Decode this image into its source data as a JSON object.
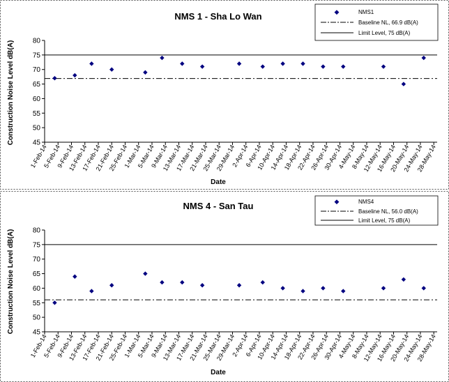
{
  "chart_data": [
    {
      "type": "scatter",
      "title": "NMS 1 - Sha Lo Wan",
      "xlabel": "Date",
      "ylabel": "Construction Noise Level  dB(A)",
      "ylim": [
        45,
        80
      ],
      "yticks": [
        45,
        50,
        55,
        60,
        65,
        70,
        75,
        80
      ],
      "categories": [
        "1-Feb-14",
        "5-Feb-14",
        "9-Feb-14",
        "13-Feb-14",
        "17-Feb-14",
        "21-Feb-14",
        "25-Feb-14",
        "1-Mar-14",
        "5-Mar-14",
        "9-Mar-14",
        "13-Mar-14",
        "17-Mar-14",
        "21-Mar-14",
        "25-Mar-14",
        "29-Mar-14",
        "2-Apr-14",
        "6-Apr-14",
        "10-Apr-14",
        "14-Apr-14",
        "18-Apr-14",
        "22-Apr-14",
        "26-Apr-14",
        "30-Apr-14",
        "4-May-14",
        "8-May-14",
        "12-May-14",
        "16-May-14",
        "20-May-14",
        "24-May-14",
        "28-May-14"
      ],
      "series": [
        {
          "name": "NMS1",
          "color": "#000080",
          "points": [
            {
              "x": "4-Feb-14",
              "y": 67
            },
            {
              "x": "10-Feb-14",
              "y": 68
            },
            {
              "x": "15-Feb-14",
              "y": 72
            },
            {
              "x": "21-Feb-14",
              "y": 70
            },
            {
              "x": "3-Mar-14",
              "y": 69
            },
            {
              "x": "8-Mar-14",
              "y": 74
            },
            {
              "x": "14-Mar-14",
              "y": 72
            },
            {
              "x": "20-Mar-14",
              "y": 71
            },
            {
              "x": "31-Mar-14",
              "y": 72
            },
            {
              "x": "7-Apr-14",
              "y": 71
            },
            {
              "x": "13-Apr-14",
              "y": 72
            },
            {
              "x": "19-Apr-14",
              "y": 72
            },
            {
              "x": "25-Apr-14",
              "y": 71
            },
            {
              "x": "1-May-14",
              "y": 71
            },
            {
              "x": "13-May-14",
              "y": 71
            },
            {
              "x": "19-May-14",
              "y": 65
            },
            {
              "x": "25-May-14",
              "y": 74
            }
          ]
        }
      ],
      "reference_lines": [
        {
          "name": "Baseline NL, 66.9 dB(A)",
          "value": 66.9,
          "style": "dash-dot"
        },
        {
          "name": "Limit Level, 75 dB(A)",
          "value": 75,
          "style": "solid"
        }
      ],
      "legend": "top-right",
      "grid": false
    },
    {
      "type": "scatter",
      "title": "NMS 4 - San Tau",
      "xlabel": "Date",
      "ylabel": "Construction Noise Level  dB(A)",
      "ylim": [
        45,
        80
      ],
      "yticks": [
        45,
        50,
        55,
        60,
        65,
        70,
        75,
        80
      ],
      "categories": [
        "1-Feb-14",
        "5-Feb-14",
        "9-Feb-14",
        "13-Feb-14",
        "17-Feb-14",
        "21-Feb-14",
        "25-Feb-14",
        "1-Mar-14",
        "5-Mar-14",
        "9-Mar-14",
        "13-Mar-14",
        "17-Mar-14",
        "21-Mar-14",
        "25-Mar-14",
        "29-Mar-14",
        "2-Apr-14",
        "6-Apr-14",
        "10-Apr-14",
        "14-Apr-14",
        "18-Apr-14",
        "22-Apr-14",
        "26-Apr-14",
        "30-Apr-14",
        "4-May-14",
        "8-May-14",
        "12-May-14",
        "16-May-14",
        "20-May-14",
        "24-May-14",
        "28-May-14"
      ],
      "series": [
        {
          "name": "NMS4",
          "color": "#000080",
          "points": [
            {
              "x": "4-Feb-14",
              "y": 55
            },
            {
              "x": "10-Feb-14",
              "y": 64
            },
            {
              "x": "15-Feb-14",
              "y": 59
            },
            {
              "x": "21-Feb-14",
              "y": 61
            },
            {
              "x": "3-Mar-14",
              "y": 65
            },
            {
              "x": "8-Mar-14",
              "y": 62
            },
            {
              "x": "14-Mar-14",
              "y": 62
            },
            {
              "x": "20-Mar-14",
              "y": 61
            },
            {
              "x": "31-Mar-14",
              "y": 61
            },
            {
              "x": "7-Apr-14",
              "y": 62
            },
            {
              "x": "13-Apr-14",
              "y": 60
            },
            {
              "x": "19-Apr-14",
              "y": 59
            },
            {
              "x": "25-Apr-14",
              "y": 60
            },
            {
              "x": "1-May-14",
              "y": 59
            },
            {
              "x": "13-May-14",
              "y": 60
            },
            {
              "x": "19-May-14",
              "y": 63
            },
            {
              "x": "25-May-14",
              "y": 60
            }
          ]
        }
      ],
      "reference_lines": [
        {
          "name": "Baseline NL, 56.0 dB(A)",
          "value": 56.0,
          "style": "dash-dot"
        },
        {
          "name": "Limit Level, 75 dB(A)",
          "value": 75,
          "style": "solid"
        }
      ],
      "legend": "top-right",
      "grid": false
    }
  ]
}
